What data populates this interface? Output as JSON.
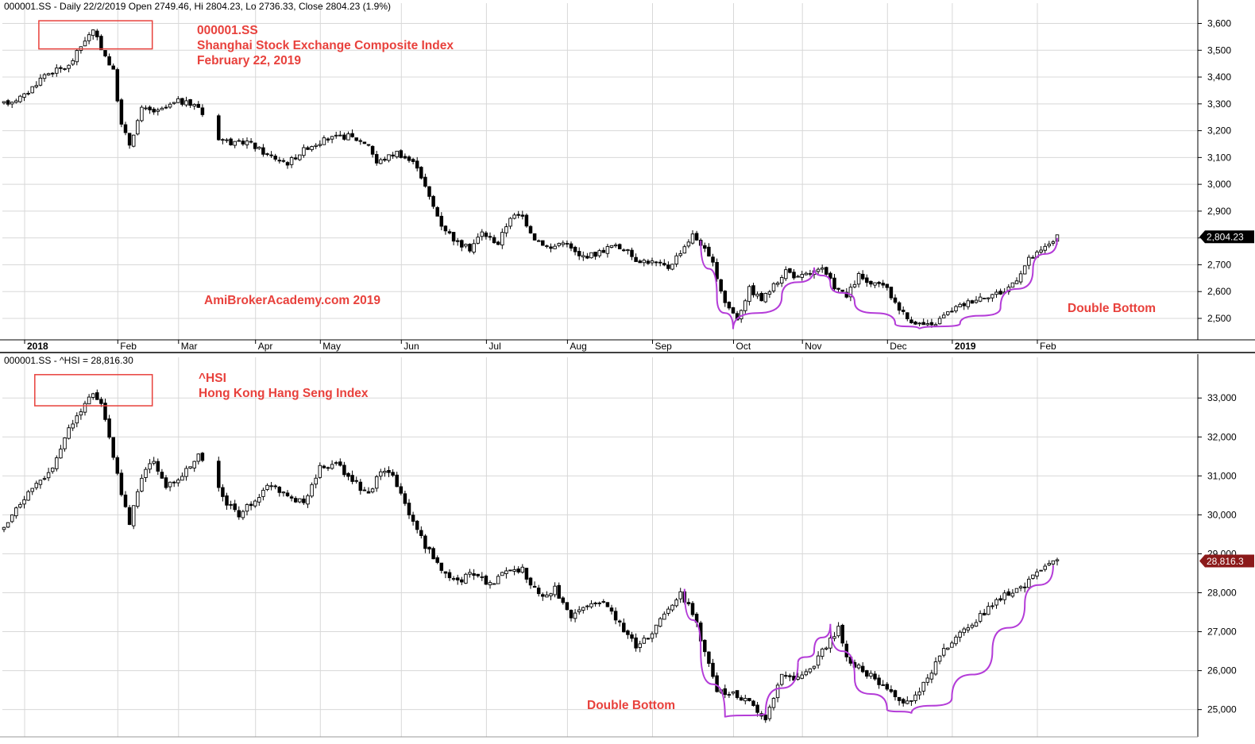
{
  "colors": {
    "annotation": "#e8413c",
    "curve": "#b43cd8",
    "grid": "#d8d8d8",
    "candle": "#000000",
    "axis": "#000000",
    "price_tag_top": "#000000",
    "price_tag_bottom": "#8b1a1a"
  },
  "chart_data": [
    {
      "type": "candlestick",
      "header": "000001.SS - Daily 22/2/2019 Open 2749.46, Hi 2804.23, Lo 2736.33, Close 2804.23 (1.9%)",
      "title_lines": [
        "000001.SS",
        "Shanghai Stock Exchange Composite Index",
        "February 22, 2019"
      ],
      "watermark": "AmiBrokerAcademy.com   2019",
      "pattern_label": "Double Bottom",
      "last_value_label": "2,804.23",
      "last_value": 2804.23,
      "ylim": [
        2420,
        3640
      ],
      "y_ticks": [
        2500,
        2600,
        2700,
        2800,
        2900,
        3000,
        3100,
        3200,
        3300,
        3400,
        3500,
        3600
      ],
      "y_tick_labels": [
        "2,500",
        "2,600",
        "2,700",
        "2,800",
        "2,900",
        "3,000",
        "3,100",
        "3,200",
        "3,300",
        "3,400",
        "3,500",
        "3,600"
      ],
      "x_labels": [
        "2018",
        "Feb",
        "Mar",
        "Apr",
        "May",
        "Jun",
        "Jul",
        "Aug",
        "Sep",
        "Oct",
        "Nov",
        "Dec",
        "2019",
        "Feb"
      ],
      "x_label_days": [
        0,
        23,
        38,
        57,
        73,
        93,
        114,
        134,
        155,
        175,
        192,
        213,
        229,
        250
      ],
      "total_days": 280,
      "key_points": [
        [
          0,
          3300
        ],
        [
          5,
          3330
        ],
        [
          10,
          3410
        ],
        [
          16,
          3440
        ],
        [
          20,
          3540
        ],
        [
          22,
          3570
        ],
        [
          24,
          3510
        ],
        [
          27,
          3420
        ],
        [
          29,
          3220
        ],
        [
          31,
          3150
        ],
        [
          34,
          3280
        ],
        [
          38,
          3270
        ],
        [
          43,
          3310
        ],
        [
          48,
          3290
        ],
        [
          52,
          3180
        ],
        [
          57,
          3150
        ],
        [
          60,
          3160
        ],
        [
          65,
          3110
        ],
        [
          70,
          3080
        ],
        [
          75,
          3140
        ],
        [
          80,
          3170
        ],
        [
          85,
          3180
        ],
        [
          90,
          3150
        ],
        [
          92,
          3080
        ],
        [
          97,
          3120
        ],
        [
          102,
          3070
        ],
        [
          105,
          2950
        ],
        [
          108,
          2850
        ],
        [
          112,
          2780
        ],
        [
          115,
          2760
        ],
        [
          118,
          2820
        ],
        [
          122,
          2780
        ],
        [
          125,
          2880
        ],
        [
          128,
          2880
        ],
        [
          131,
          2800
        ],
        [
          135,
          2760
        ],
        [
          138,
          2790
        ],
        [
          142,
          2730
        ],
        [
          146,
          2740
        ],
        [
          150,
          2770
        ],
        [
          153,
          2760
        ],
        [
          156,
          2720
        ],
        [
          160,
          2710
        ],
        [
          164,
          2690
        ],
        [
          167,
          2750
        ],
        [
          170,
          2810
        ],
        [
          172,
          2780
        ],
        [
          175,
          2700
        ],
        [
          178,
          2560
        ],
        [
          181,
          2500
        ],
        [
          184,
          2610
        ],
        [
          187,
          2570
        ],
        [
          190,
          2620
        ],
        [
          193,
          2680
        ],
        [
          196,
          2650
        ],
        [
          199,
          2670
        ],
        [
          202,
          2680
        ],
        [
          205,
          2620
        ],
        [
          208,
          2580
        ],
        [
          211,
          2660
        ],
        [
          214,
          2620
        ],
        [
          217,
          2630
        ],
        [
          220,
          2560
        ],
        [
          223,
          2500
        ],
        [
          226,
          2480
        ],
        [
          229,
          2470
        ],
        [
          232,
          2510
        ],
        [
          235,
          2540
        ],
        [
          238,
          2560
        ],
        [
          241,
          2580
        ],
        [
          244,
          2590
        ],
        [
          247,
          2600
        ],
        [
          250,
          2650
        ],
        [
          253,
          2720
        ],
        [
          256,
          2750
        ],
        [
          258,
          2780
        ],
        [
          260,
          2804
        ]
      ],
      "curves": [
        [
          [
            172,
            2790
          ],
          [
            176,
            2580
          ],
          [
            180,
            2460
          ],
          [
            192,
            2580
          ],
          [
            200,
            2690
          ]
        ],
        [
          [
            200,
            2690
          ],
          [
            204,
            2630
          ],
          [
            210,
            2560
          ],
          [
            220,
            2480
          ],
          [
            226,
            2460
          ]
        ],
        [
          [
            226,
            2460
          ],
          [
            236,
            2480
          ],
          [
            246,
            2540
          ],
          [
            254,
            2680
          ],
          [
            260,
            2800
          ]
        ]
      ],
      "highlight_box": {
        "day_start": 9,
        "day_end": 37,
        "y_low": 3505,
        "y_high": 3610
      }
    },
    {
      "type": "candlestick",
      "header": "000001.SS - ^HSI = 28,816.30",
      "title_lines": [
        "^HSI",
        "Hong Kong Hang Seng Index"
      ],
      "pattern_label": "Double Bottom",
      "last_value_label": "28,816.3",
      "last_value": 28816.3,
      "ylim": [
        24300,
        33800
      ],
      "y_ticks": [
        25000,
        26000,
        27000,
        28000,
        29000,
        30000,
        31000,
        32000,
        33000
      ],
      "y_tick_labels": [
        "25,000",
        "26,000",
        "27,000",
        "28,000",
        "29,000",
        "30,000",
        "31,000",
        "32,000",
        "33,000"
      ],
      "total_days": 280,
      "key_points": [
        [
          0,
          29600
        ],
        [
          4,
          30300
        ],
        [
          8,
          30800
        ],
        [
          12,
          31200
        ],
        [
          16,
          32200
        ],
        [
          19,
          32700
        ],
        [
          22,
          33100
        ],
        [
          24,
          32900
        ],
        [
          27,
          31500
        ],
        [
          29,
          30500
        ],
        [
          31,
          29800
        ],
        [
          34,
          31000
        ],
        [
          37,
          31400
        ],
        [
          40,
          30700
        ],
        [
          44,
          31000
        ],
        [
          48,
          31500
        ],
        [
          51,
          31200
        ],
        [
          54,
          30400
        ],
        [
          58,
          30000
        ],
        [
          62,
          30400
        ],
        [
          66,
          30800
        ],
        [
          70,
          30500
        ],
        [
          74,
          30300
        ],
        [
          78,
          31200
        ],
        [
          82,
          31300
        ],
        [
          86,
          30900
        ],
        [
          90,
          30500
        ],
        [
          93,
          31100
        ],
        [
          96,
          31000
        ],
        [
          100,
          30000
        ],
        [
          104,
          29200
        ],
        [
          108,
          28600
        ],
        [
          112,
          28300
        ],
        [
          116,
          28500
        ],
        [
          120,
          28200
        ],
        [
          124,
          28600
        ],
        [
          128,
          28600
        ],
        [
          132,
          27900
        ],
        [
          136,
          28100
        ],
        [
          140,
          27300
        ],
        [
          144,
          27700
        ],
        [
          148,
          27800
        ],
        [
          152,
          27200
        ],
        [
          156,
          26600
        ],
        [
          160,
          27000
        ],
        [
          164,
          27600
        ],
        [
          167,
          28000
        ],
        [
          170,
          27500
        ],
        [
          173,
          26500
        ],
        [
          176,
          25500
        ],
        [
          180,
          25400
        ],
        [
          184,
          25200
        ],
        [
          188,
          24800
        ],
        [
          192,
          25900
        ],
        [
          196,
          25800
        ],
        [
          200,
          26100
        ],
        [
          202,
          26500
        ],
        [
          204,
          26800
        ],
        [
          206,
          27100
        ],
        [
          208,
          26300
        ],
        [
          212,
          26000
        ],
        [
          216,
          25700
        ],
        [
          220,
          25300
        ],
        [
          223,
          25200
        ],
        [
          226,
          25500
        ],
        [
          229,
          26000
        ],
        [
          232,
          26500
        ],
        [
          236,
          27000
        ],
        [
          240,
          27300
        ],
        [
          244,
          27700
        ],
        [
          248,
          28000
        ],
        [
          252,
          28200
        ],
        [
          256,
          28600
        ],
        [
          260,
          28816
        ]
      ],
      "curves": [
        [
          [
            168,
            28100
          ],
          [
            172,
            26500
          ],
          [
            178,
            24800
          ],
          [
            188,
            24900
          ],
          [
            196,
            26200
          ]
        ],
        [
          [
            196,
            26200
          ],
          [
            200,
            26500
          ],
          [
            204,
            27200
          ],
          [
            210,
            25800
          ],
          [
            218,
            25000
          ],
          [
            224,
            24900
          ]
        ],
        [
          [
            224,
            24900
          ],
          [
            234,
            25300
          ],
          [
            244,
            26500
          ],
          [
            252,
            27700
          ],
          [
            259,
            28700
          ]
        ]
      ],
      "highlight_box": {
        "day_start": 8,
        "day_end": 37,
        "y_low": 32800,
        "y_high": 33600
      }
    }
  ]
}
